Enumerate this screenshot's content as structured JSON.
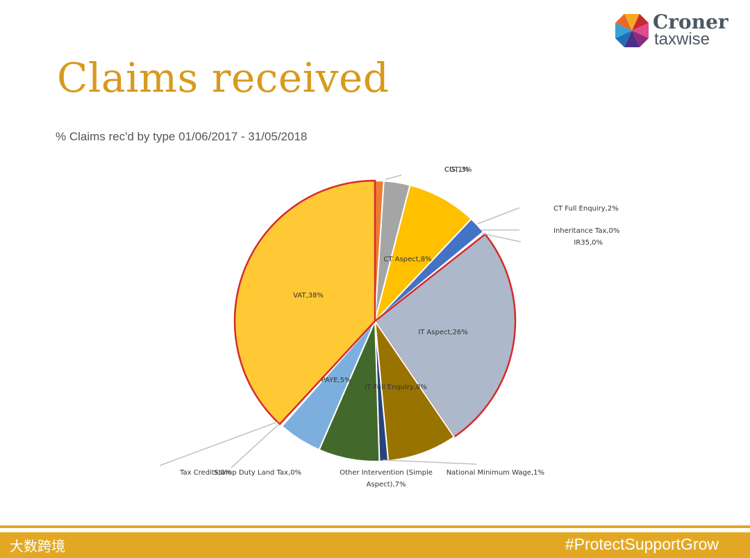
{
  "slide": {
    "title": "Claims received",
    "brand_line1": "Croner",
    "brand_line2": "taxwise",
    "footer_hashtag": "#ProtectSupportGrow",
    "footer_watermark": "大数跨境"
  },
  "colors": {
    "title": "#d79a1c",
    "footer": "#e3a823",
    "brand_text": "#4c5763"
  },
  "chart_data": {
    "type": "pie",
    "title": "% Claims rec'd by type 01/06/2017 - 31/05/2018",
    "slices": [
      {
        "label": "CIS",
        "value": 1,
        "text": "CIS,1%",
        "color": "#ed7d31"
      },
      {
        "label": "CGT",
        "value": 3,
        "text": "CGT,3%",
        "color": "#a5a5a5"
      },
      {
        "label": "CT Aspect",
        "value": 8,
        "text": "CT Aspect,8%",
        "color": "#ffc000"
      },
      {
        "label": "CT Full Enquiry",
        "value": 2,
        "text": "CT Full Enquiry,2%",
        "color": "#4472c4"
      },
      {
        "label": "Inheritance Tax",
        "value": 0,
        "text": "Inheritance Tax,0%",
        "color": "#70ad47"
      },
      {
        "label": "IR35",
        "value": 0,
        "text": "IR35,0%",
        "color": "#264478"
      },
      {
        "label": "IT Aspect",
        "value": 26,
        "text": "IT Aspect,26%",
        "color": "#adb9ca"
      },
      {
        "label": "IT Full Enquiry",
        "value": 8,
        "text": "IT Full Enquiry,8%",
        "color": "#997300"
      },
      {
        "label": "National Minimum Wage",
        "value": 1,
        "text": "National Minimum Wage,1%",
        "color": "#264478"
      },
      {
        "label": "Other Intervention (Simple Aspect)",
        "value": 7,
        "text": "Other Intervention (Simple Aspect),7%",
        "color": "#43682b"
      },
      {
        "label": "PAYE",
        "value": 5,
        "text": "PAYE,5%",
        "color": "#7cafdd"
      },
      {
        "label": "Stamp Duty Land Tax",
        "value": 0,
        "text": "Stamp Duty Land Tax,0%",
        "color": "#a9d18e"
      },
      {
        "label": "Tax Credits",
        "value": 0,
        "text": "Tax Credits,0%",
        "color": "#9e480e"
      },
      {
        "label": "VAT",
        "value": 38,
        "text": "VAT,38%",
        "color": "#ffc935"
      }
    ],
    "legend": "none"
  }
}
